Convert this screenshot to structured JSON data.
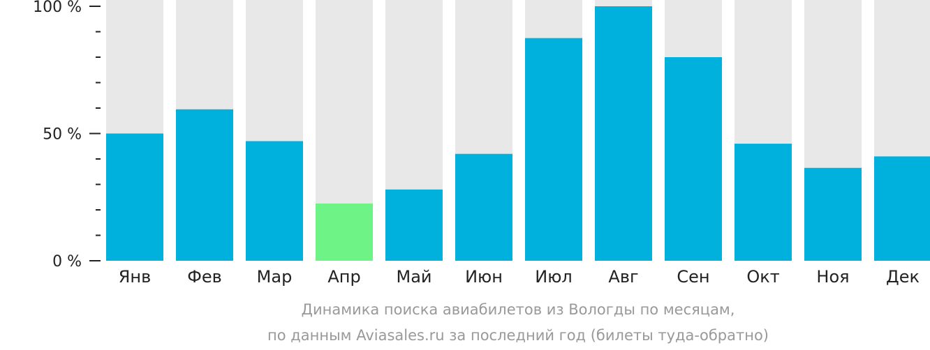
{
  "chart_data": {
    "type": "bar",
    "categories": [
      "Янв",
      "Фев",
      "Мар",
      "Апр",
      "Май",
      "Июн",
      "Июл",
      "Авг",
      "Сен",
      "Окт",
      "Ноя",
      "Дек"
    ],
    "values": [
      50,
      59.5,
      47,
      22.5,
      28,
      42,
      87.5,
      100,
      80,
      46,
      36.5,
      41
    ],
    "ylim": [
      0,
      100
    ],
    "yticks": [
      {
        "value": 0,
        "label": "0 %"
      },
      {
        "value": 50,
        "label": "50 %"
      },
      {
        "value": 100,
        "label": "100 %"
      }
    ],
    "minor_ticks": [
      10,
      20,
      30,
      40,
      60,
      70,
      80,
      90
    ],
    "highlight_index": 3,
    "caption_line1": "Динамика поиска авиабилетов из Вологды по месяцам,",
    "caption_line2": "по данным Aviasales.ru за последний год (билеты туда-обратно)",
    "colors": {
      "bar": "#00b1dd",
      "highlight": "#6ef486",
      "background_bar": "#e8e8e8",
      "axis": "#222222",
      "caption": "#999999"
    }
  }
}
